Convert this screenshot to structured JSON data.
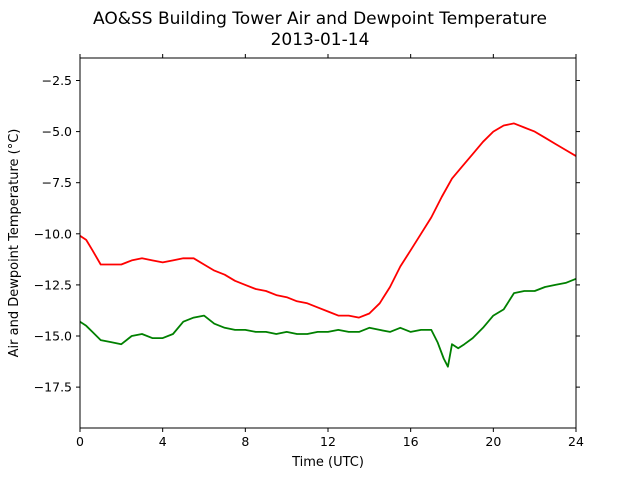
{
  "chart_data": {
    "type": "line",
    "title_line1": "AO&SS Building Tower Air and Dewpoint Temperature",
    "title_line2": "2013-01-14",
    "xlabel": "Time (UTC)",
    "ylabel": "Air and Dewpoint Temperature (°C)",
    "xlim": [
      0,
      24
    ],
    "ylim": [
      -19.5,
      -1.4
    ],
    "x_ticks": [
      0,
      4,
      8,
      12,
      16,
      20,
      24
    ],
    "x_tick_labels": [
      "0",
      "4",
      "8",
      "12",
      "16",
      "20",
      "24"
    ],
    "y_ticks": [
      -17.5,
      -15.0,
      -12.5,
      -10.0,
      -7.5,
      -5.0,
      -2.5
    ],
    "y_tick_labels": [
      "−17.5",
      "−15.0",
      "−12.5",
      "−10.0",
      "−7.5",
      "−5.0",
      "−2.5"
    ],
    "grid": false,
    "series": [
      {
        "color": "#ff0000",
        "x": [
          0,
          0.3,
          0.6,
          1.0,
          1.5,
          2.0,
          2.5,
          3.0,
          3.5,
          4.0,
          4.5,
          5.0,
          5.5,
          6.0,
          6.5,
          7.0,
          7.5,
          8.0,
          8.5,
          9.0,
          9.5,
          10.0,
          10.5,
          11.0,
          11.5,
          12.0,
          12.5,
          13.0,
          13.5,
          14.0,
          14.5,
          15.0,
          15.5,
          16.0,
          16.5,
          17.0,
          17.5,
          18.0,
          18.5,
          19.0,
          19.5,
          20.0,
          20.5,
          21.0,
          21.5,
          22.0,
          22.5,
          23.0,
          23.5,
          24.0
        ],
        "values": [
          -10.1,
          -10.3,
          -10.8,
          -11.5,
          -11.5,
          -11.5,
          -11.3,
          -11.2,
          -11.3,
          -11.4,
          -11.3,
          -11.2,
          -11.2,
          -11.5,
          -11.8,
          -12.0,
          -12.3,
          -12.5,
          -12.7,
          -12.8,
          -13.0,
          -13.1,
          -13.3,
          -13.4,
          -13.6,
          -13.8,
          -14.0,
          -14.0,
          -14.1,
          -13.9,
          -13.4,
          -12.6,
          -11.6,
          -10.8,
          -10.0,
          -9.2,
          -8.2,
          -7.3,
          -6.7,
          -6.1,
          -5.5,
          -5.0,
          -4.7,
          -4.6,
          -4.8,
          -5.0,
          -5.3,
          -5.6,
          -5.9,
          -6.2
        ]
      },
      {
        "color": "#008000",
        "x": [
          0,
          0.3,
          0.6,
          1.0,
          1.5,
          2.0,
          2.5,
          3.0,
          3.5,
          4.0,
          4.5,
          5.0,
          5.5,
          6.0,
          6.5,
          7.0,
          7.5,
          8.0,
          8.5,
          9.0,
          9.5,
          10.0,
          10.5,
          11.0,
          11.5,
          12.0,
          12.5,
          13.0,
          13.5,
          14.0,
          14.5,
          15.0,
          15.5,
          16.0,
          16.5,
          17.0,
          17.3,
          17.6,
          17.8,
          18.0,
          18.3,
          18.6,
          19.0,
          19.5,
          20.0,
          20.5,
          21.0,
          21.5,
          22.0,
          22.5,
          23.0,
          23.5,
          24.0
        ],
        "values": [
          -14.3,
          -14.5,
          -14.8,
          -15.2,
          -15.3,
          -15.4,
          -15.0,
          -14.9,
          -15.1,
          -15.1,
          -14.9,
          -14.3,
          -14.1,
          -14.0,
          -14.4,
          -14.6,
          -14.7,
          -14.7,
          -14.8,
          -14.8,
          -14.9,
          -14.8,
          -14.9,
          -14.9,
          -14.8,
          -14.8,
          -14.7,
          -14.8,
          -14.8,
          -14.6,
          -14.7,
          -14.8,
          -14.6,
          -14.8,
          -14.7,
          -14.7,
          -15.3,
          -16.1,
          -16.5,
          -15.4,
          -15.6,
          -15.4,
          -15.1,
          -14.6,
          -14.0,
          -13.7,
          -12.9,
          -12.8,
          -12.8,
          -12.6,
          -12.5,
          -12.4,
          -12.2
        ]
      }
    ]
  }
}
